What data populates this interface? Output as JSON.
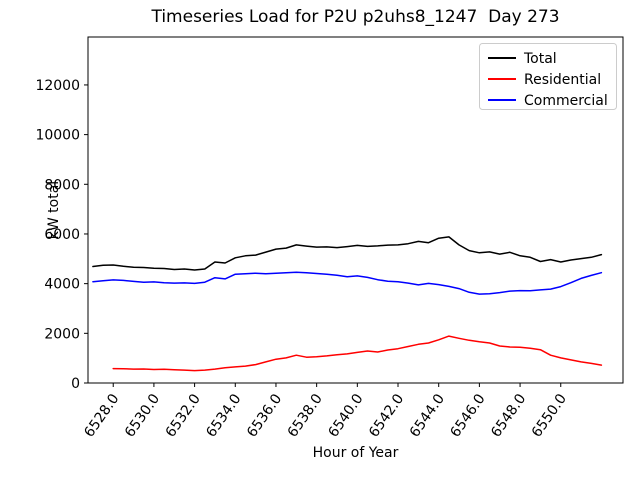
{
  "chart_data": {
    "type": "line",
    "title": "Timeseries Load for P2U p2uhs8_1247  Day 273",
    "xlabel": "Hour of Year",
    "ylabel": "kW total",
    "grid": false,
    "legend_position": "upper right",
    "xlim": [
      6526.76,
      6553.06
    ],
    "ylim": [
      0,
      13930
    ],
    "xtick_values": [
      6528,
      6530,
      6532,
      6534,
      6536,
      6538,
      6540,
      6542,
      6544,
      6546,
      6548,
      6550
    ],
    "xtick_labels": [
      "6528.0",
      "6530.0",
      "6532.0",
      "6534.0",
      "6536.0",
      "6538.0",
      "6540.0",
      "6542.0",
      "6544.0",
      "6546.0",
      "6548.0",
      "6550.0"
    ],
    "ytick_values": [
      0,
      2000,
      4000,
      6000,
      8000,
      10000,
      12000
    ],
    "ytick_labels": [
      "0",
      "2000",
      "4000",
      "6000",
      "8000",
      "10000",
      "12000"
    ],
    "series": [
      {
        "id": "total",
        "name": "Total",
        "color": "#000000",
        "x": [
          6527.0,
          6527.5,
          6528.0,
          6528.5,
          6529.0,
          6529.5,
          6530.0,
          6530.5,
          6531.0,
          6531.5,
          6532.0,
          6532.5,
          6533.0,
          6533.5,
          6534.0,
          6534.5,
          6535.0,
          6535.5,
          6536.0,
          6536.5,
          6537.0,
          6537.5,
          6538.0,
          6538.5,
          6539.0,
          6539.5,
          6540.0,
          6540.5,
          6541.0,
          6541.5,
          6542.0,
          6542.5,
          6543.0,
          6543.5,
          6544.0,
          6544.5,
          6545.0,
          6545.5,
          6546.0,
          6546.5,
          6547.0,
          6547.5,
          6548.0,
          6548.5,
          6549.0,
          6549.5,
          6550.0,
          6550.5,
          6551.0,
          6551.5,
          6552.0
        ],
        "values": [
          4690,
          4740,
          4750,
          4700,
          4660,
          4650,
          4620,
          4610,
          4570,
          4590,
          4550,
          4590,
          4870,
          4830,
          5040,
          5120,
          5150,
          5270,
          5390,
          5430,
          5560,
          5510,
          5470,
          5480,
          5450,
          5490,
          5540,
          5500,
          5520,
          5550,
          5560,
          5610,
          5700,
          5650,
          5830,
          5880,
          5560,
          5330,
          5240,
          5280,
          5190,
          5260,
          5120,
          5060,
          4890,
          4970,
          4870,
          4950,
          5010,
          5060,
          5170
        ]
      },
      {
        "id": "residential",
        "name": "Residential",
        "color": "#ff0000",
        "x": [
          6528.0,
          6528.5,
          6529.0,
          6529.5,
          6530.0,
          6530.5,
          6531.0,
          6531.5,
          6532.0,
          6532.5,
          6533.0,
          6533.5,
          6534.0,
          6534.5,
          6535.0,
          6535.5,
          6536.0,
          6536.5,
          6537.0,
          6537.5,
          6538.0,
          6538.5,
          6539.0,
          6539.5,
          6540.0,
          6540.5,
          6541.0,
          6541.5,
          6542.0,
          6542.5,
          6543.0,
          6543.5,
          6544.0,
          6544.5,
          6545.0,
          6545.5,
          6546.0,
          6546.5,
          6547.0,
          6547.5,
          6548.0,
          6548.5,
          6549.0,
          6549.5,
          6550.0,
          6550.5,
          6551.0,
          6551.5,
          6552.0
        ],
        "values": [
          580,
          575,
          560,
          565,
          545,
          550,
          530,
          520,
          500,
          520,
          560,
          610,
          650,
          680,
          740,
          850,
          960,
          1010,
          1120,
          1040,
          1060,
          1090,
          1140,
          1170,
          1230,
          1290,
          1250,
          1330,
          1380,
          1470,
          1560,
          1610,
          1740,
          1890,
          1800,
          1720,
          1660,
          1610,
          1490,
          1450,
          1440,
          1400,
          1340,
          1120,
          1010,
          930,
          850,
          790,
          720
        ]
      },
      {
        "id": "commercial",
        "name": "Commercial",
        "color": "#0000ff",
        "x": [
          6527.0,
          6527.5,
          6528.0,
          6528.5,
          6529.0,
          6529.5,
          6530.0,
          6530.5,
          6531.0,
          6531.5,
          6532.0,
          6532.5,
          6533.0,
          6533.5,
          6534.0,
          6534.5,
          6535.0,
          6535.5,
          6536.0,
          6536.5,
          6537.0,
          6537.5,
          6538.0,
          6538.5,
          6539.0,
          6539.5,
          6540.0,
          6540.5,
          6541.0,
          6541.5,
          6542.0,
          6542.5,
          6543.0,
          6543.5,
          6544.0,
          6544.5,
          6545.0,
          6545.5,
          6546.0,
          6546.5,
          6547.0,
          6547.5,
          6548.0,
          6548.5,
          6549.0,
          6549.5,
          6550.0,
          6550.5,
          6551.0,
          6551.5,
          6552.0
        ],
        "values": [
          4080,
          4120,
          4150,
          4130,
          4090,
          4060,
          4070,
          4040,
          4020,
          4030,
          4010,
          4060,
          4240,
          4190,
          4380,
          4400,
          4420,
          4400,
          4420,
          4440,
          4460,
          4440,
          4410,
          4380,
          4340,
          4280,
          4310,
          4250,
          4160,
          4100,
          4080,
          4020,
          3950,
          4010,
          3960,
          3890,
          3800,
          3650,
          3580,
          3590,
          3640,
          3700,
          3720,
          3710,
          3750,
          3780,
          3880,
          4040,
          4210,
          4330,
          4440
        ]
      }
    ]
  }
}
